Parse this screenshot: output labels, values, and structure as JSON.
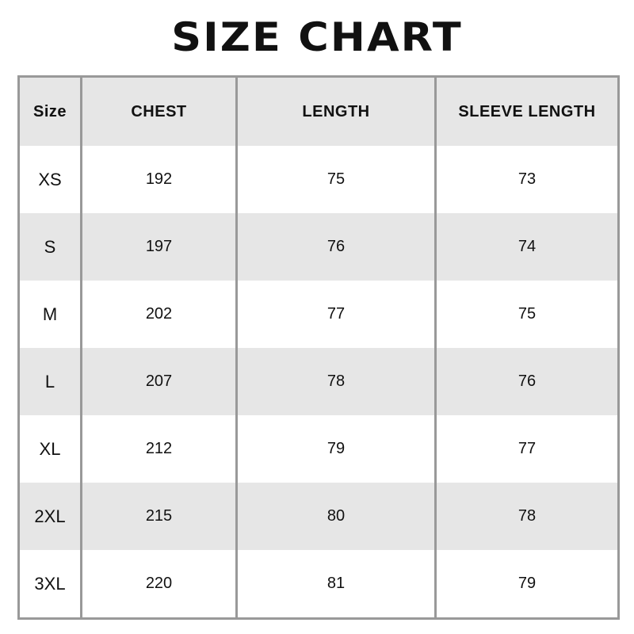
{
  "title": "SIZE CHART",
  "headers": [
    "Size",
    "CHEST",
    "LENGTH",
    "SLEEVE LENGTH"
  ],
  "rows": [
    [
      "XS",
      "192",
      "75",
      "73"
    ],
    [
      "S",
      "197",
      "76",
      "74"
    ],
    [
      "M",
      "202",
      "77",
      "75"
    ],
    [
      "L",
      "207",
      "78",
      "76"
    ],
    [
      "XL",
      "212",
      "79",
      "77"
    ],
    [
      "2XL",
      "215",
      "80",
      "78"
    ],
    [
      "3XL",
      "220",
      "81",
      "79"
    ]
  ],
  "colors": {
    "border": "#999999",
    "stripe": "#e6e6e6"
  }
}
